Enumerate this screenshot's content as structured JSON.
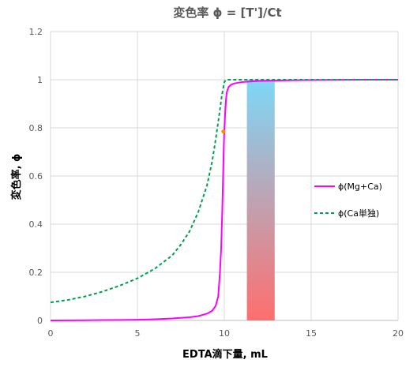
{
  "chart_data": {
    "type": "line",
    "title": "変色率 ϕ = [T']/Ct",
    "xlabel": "EDTA滴下量, mL",
    "ylabel": "変色率, ϕ",
    "xlim": [
      0,
      20
    ],
    "ylim": [
      0,
      1.2
    ],
    "x_ticks": [
      "0",
      "5",
      "10",
      "15",
      "20"
    ],
    "y_ticks": [
      "0",
      "0.2",
      "0.4",
      "0.6",
      "0.8",
      "1",
      "1.2"
    ],
    "grid": "horizontal",
    "legend_position": "right",
    "series": [
      {
        "name": "ϕ(Mg+Ca)",
        "style": "solid",
        "color": "#ff00ff",
        "x": [
          0,
          2,
          4,
          5,
          6,
          7,
          8,
          8.5,
          9,
          9.3,
          9.5,
          9.65,
          9.75,
          9.82,
          9.88,
          9.93,
          9.97,
          10.0,
          10.05,
          10.1,
          10.15,
          10.25,
          10.4,
          10.6,
          11,
          12,
          14,
          16,
          18,
          20
        ],
        "y": [
          0.0,
          0.001,
          0.002,
          0.003,
          0.005,
          0.008,
          0.013,
          0.018,
          0.028,
          0.04,
          0.06,
          0.1,
          0.2,
          0.3,
          0.45,
          0.6,
          0.72,
          0.79,
          0.86,
          0.92,
          0.95,
          0.97,
          0.98,
          0.985,
          0.99,
          0.995,
          0.998,
          0.999,
          1.0,
          1.0
        ]
      },
      {
        "name": "ϕ(Ca単独)",
        "style": "dashed",
        "color": "#00a050",
        "x": [
          0,
          1,
          2,
          3,
          4,
          5,
          6,
          7,
          7.5,
          8,
          8.5,
          9,
          9.3,
          9.5,
          9.7,
          9.85,
          9.95,
          10.0,
          10.05,
          10.1,
          10.2,
          11,
          15,
          20
        ],
        "y": [
          0.075,
          0.085,
          0.1,
          0.12,
          0.145,
          0.175,
          0.215,
          0.27,
          0.315,
          0.37,
          0.45,
          0.56,
          0.66,
          0.75,
          0.85,
          0.93,
          0.97,
          0.99,
          0.995,
          1.0,
          1.0,
          1.0,
          1.0,
          1.0
        ]
      }
    ],
    "marker": {
      "x": 9.95,
      "y": 0.785,
      "color": "#ff8c00"
    },
    "shaded_band": {
      "x_from": 11.3,
      "x_to": 12.9,
      "y_from": 0,
      "y_to": 1.0,
      "top_color": "#7dd8f8",
      "bottom_color": "#ff6e6e"
    }
  }
}
